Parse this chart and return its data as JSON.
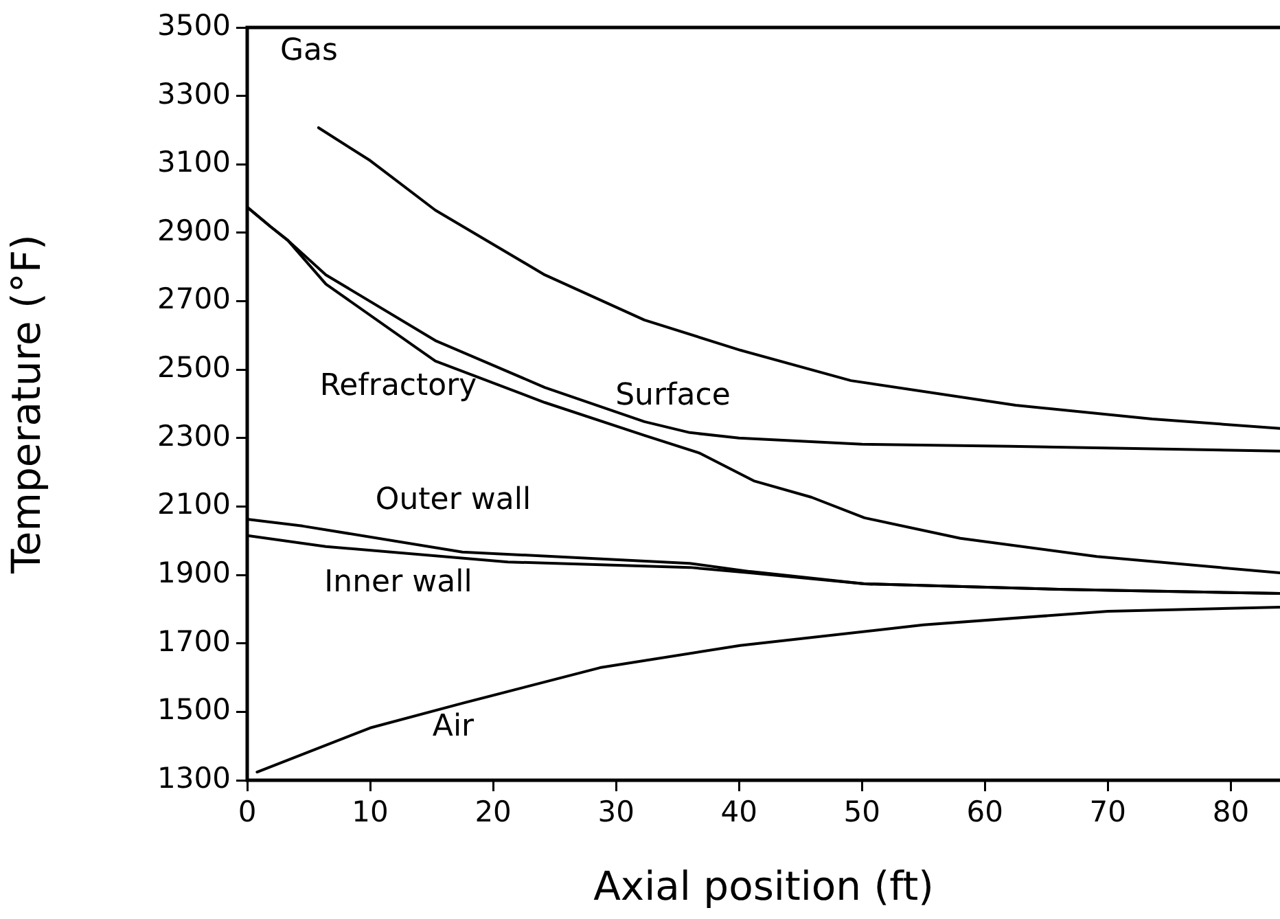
{
  "chart_data": {
    "type": "line",
    "xlabel": "Axial position (ft)",
    "ylabel": "Temperature (°F)",
    "xlim": [
      0,
      84
    ],
    "xticks": [
      0,
      10,
      20,
      30,
      40,
      50,
      60,
      70,
      80
    ],
    "ylim": [
      1300,
      3500
    ],
    "yticks": [
      1300,
      1500,
      1700,
      1900,
      2100,
      2300,
      2500,
      2700,
      2900,
      3100,
      3300,
      3500
    ],
    "grid": false,
    "legend": false,
    "marker": "none",
    "line_style": "solid",
    "series": [
      {
        "name": "Gas",
        "color": "#000000",
        "x": [
          5.8,
          10,
          15.3,
          24.2,
          32.3,
          40.1,
          49.1,
          62.5,
          73.6,
          84
        ],
        "values": [
          3207,
          3111,
          2966,
          2777,
          2645,
          2557,
          2468,
          2396,
          2356,
          2328
        ]
      },
      {
        "name": "Surface",
        "color": "#000000",
        "x": [
          0,
          1.9,
          3.3,
          6.4,
          15.3,
          24.2,
          32.3,
          36,
          40,
          50,
          62,
          84
        ],
        "values": [
          2975,
          2918,
          2878,
          2777,
          2585,
          2448,
          2348,
          2316,
          2300,
          2282,
          2276,
          2262
        ]
      },
      {
        "name": "Refractory",
        "color": "#000000",
        "x": [
          0,
          1.9,
          3.3,
          6.4,
          15.3,
          24.2,
          32.3,
          36.8,
          41.2,
          45.9,
          50.2,
          58,
          69.1,
          84
        ],
        "values": [
          2975,
          2918,
          2878,
          2750,
          2525,
          2404,
          2308,
          2256,
          2175,
          2127,
          2067,
          2007,
          1954,
          1906
        ]
      },
      {
        "name": "Outer wall",
        "color": "#000000",
        "x": [
          0,
          4.5,
          17.5,
          36,
          40.9,
          50.2,
          66,
          84
        ],
        "values": [
          2063,
          2043,
          1967,
          1934,
          1910,
          1874,
          1858,
          1846
        ]
      },
      {
        "name": "Inner wall",
        "color": "#000000",
        "x": [
          0,
          6.4,
          21.2,
          36,
          40.9,
          50.2,
          66,
          84
        ],
        "values": [
          2015,
          1983,
          1938,
          1922,
          1906,
          1874,
          1858,
          1846
        ]
      },
      {
        "name": "Air",
        "color": "#000000",
        "x": [
          0.8,
          10,
          17.5,
          28.7,
          40.1,
          55,
          70,
          84
        ],
        "values": [
          1324,
          1453,
          1525,
          1629,
          1694,
          1754,
          1794,
          1806
        ]
      }
    ]
  }
}
